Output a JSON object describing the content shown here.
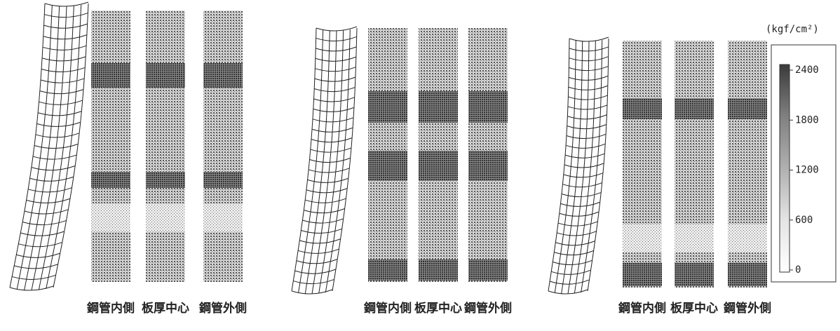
{
  "panels": [
    {
      "labels": [
        "鋼管内側",
        "板厚中心",
        "鋼管外側"
      ]
    },
    {
      "labels": [
        "鋼管内側",
        "板厚中心",
        "鋼管外側"
      ]
    },
    {
      "labels": [
        "鋼管内側",
        "板厚中心",
        "鋼管外側"
      ]
    }
  ],
  "legend": {
    "unit": "(kgf/cm²)",
    "ticks": [
      2400,
      1800,
      1200,
      600,
      0
    ]
  }
}
